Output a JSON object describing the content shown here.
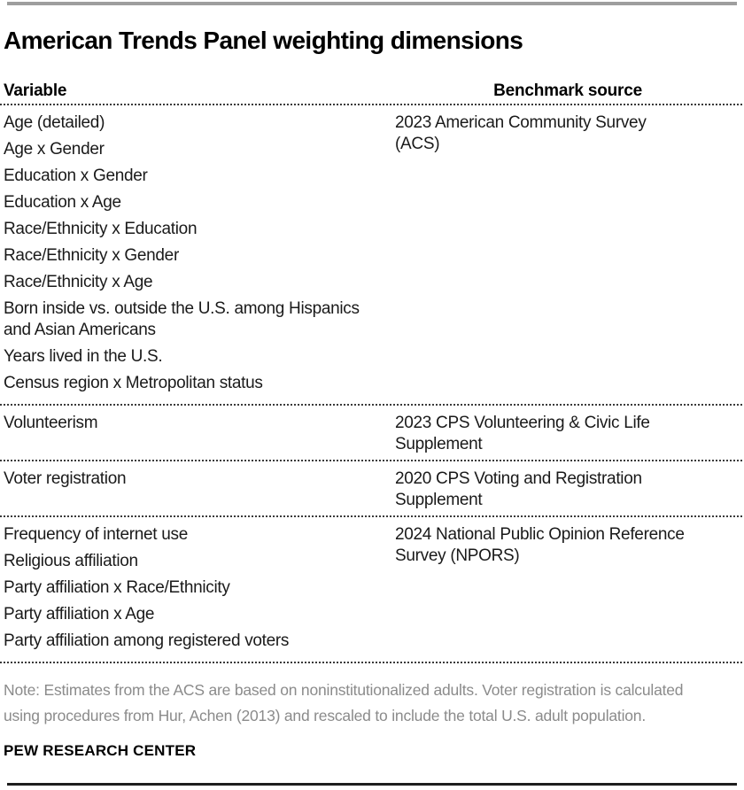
{
  "chart_data": {
    "type": "table",
    "title": "American Trends Panel weighting dimensions",
    "columns": [
      "Variable",
      "Benchmark source"
    ],
    "rows": [
      {
        "variables": [
          "Age (detailed)",
          "Age x Gender",
          "Education x Gender",
          "Education x Age",
          "Race/Ethnicity x Education",
          "Race/Ethnicity x Gender",
          "Race/Ethnicity x Age",
          "Born inside vs. outside the U.S. among Hispanics and Asian Americans",
          "Years lived in the U.S.",
          "Census region x Metropolitan status"
        ],
        "benchmark_source": "2023 American Community Survey (ACS)"
      },
      {
        "variables": [
          "Volunteerism"
        ],
        "benchmark_source": "2023 CPS Volunteering & Civic Life Supplement"
      },
      {
        "variables": [
          "Voter registration"
        ],
        "benchmark_source": "2020 CPS Voting and Registration Supplement"
      },
      {
        "variables": [
          "Frequency of internet use",
          "Religious affiliation",
          "Party affiliation x Race/Ethnicity",
          "Party affiliation x Age",
          "Party affiliation among registered voters"
        ],
        "benchmark_source": "2024 National Public Opinion Reference Survey (NPORS)"
      }
    ],
    "note": "Note: Estimates from the ACS are based on noninstitutionalized adults. Voter registration is calculated using procedures from Hur, Achen (2013) and rescaled to include the total U.S. adult population.",
    "source_brand": "PEW RESEARCH CENTER",
    "layout_hints": {
      "grid": "off",
      "separator_style": "dotted",
      "title_position": "top-left"
    },
    "colors": {
      "title_text": "#000000",
      "body_text": "#1a1a1a",
      "note_text": "#8b8b8b",
      "top_rule": "#9e9e9e",
      "bottom_rule": "#1d1d1d",
      "dotted_rule": "#3a3a3a",
      "background": "#ffffff"
    }
  }
}
